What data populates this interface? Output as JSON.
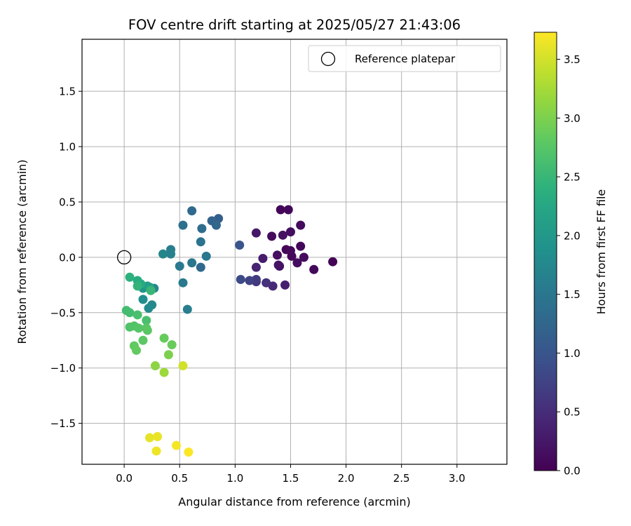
{
  "chart_data": {
    "type": "scatter",
    "title": "FOV centre drift starting at 2025/05/27 21:43:06",
    "xlabel": "Angular distance from reference (arcmin)",
    "ylabel": "Rotation from reference (arcmin)",
    "xlim": [
      -0.38,
      3.45
    ],
    "ylim": [
      -1.87,
      1.97
    ],
    "xticks": [
      0.0,
      0.5,
      1.0,
      1.5,
      2.0,
      2.5,
      3.0
    ],
    "xtick_labels": [
      "0.0",
      "0.5",
      "1.0",
      "1.5",
      "2.0",
      "2.5",
      "3.0"
    ],
    "yticks": [
      -1.5,
      -1.0,
      -0.5,
      0.0,
      0.5,
      1.0,
      1.5
    ],
    "ytick_labels": [
      "−1.5",
      "−1.0",
      "−0.5",
      "0.0",
      "0.5",
      "1.0",
      "1.5"
    ],
    "grid": true,
    "legend": {
      "position": "top-right",
      "entries": [
        "Reference platepar"
      ]
    },
    "reference_point": {
      "x": 0.0,
      "y": 0.0,
      "label": "Reference platepar"
    },
    "colorbar": {
      "label": "Hours from first FF file",
      "colormap": "viridis",
      "range": [
        0.0,
        3.73
      ],
      "ticks": [
        0.0,
        0.5,
        1.0,
        1.5,
        2.0,
        2.5,
        3.0,
        3.5
      ],
      "tick_labels": [
        "0.0",
        "0.5",
        "1.0",
        "1.5",
        "2.0",
        "2.5",
        "3.0",
        "3.5"
      ]
    },
    "series": [
      {
        "color_by": "hours",
        "points": [
          {
            "x": 1.41,
            "y": 0.43,
            "c": 0.05
          },
          {
            "x": 1.48,
            "y": 0.43,
            "c": 0.08
          },
          {
            "x": 1.59,
            "y": 0.29,
            "c": 0.12
          },
          {
            "x": 1.5,
            "y": 0.23,
            "c": 0.15
          },
          {
            "x": 1.43,
            "y": 0.2,
            "c": 0.18
          },
          {
            "x": 1.33,
            "y": 0.19,
            "c": 0.1
          },
          {
            "x": 1.59,
            "y": 0.1,
            "c": 0.06
          },
          {
            "x": 1.46,
            "y": 0.07,
            "c": 0.04
          },
          {
            "x": 1.5,
            "y": 0.06,
            "c": 0.09
          },
          {
            "x": 1.38,
            "y": 0.02,
            "c": 0.13
          },
          {
            "x": 1.51,
            "y": 0.01,
            "c": 0.07
          },
          {
            "x": 1.62,
            "y": 0.0,
            "c": 0.11
          },
          {
            "x": 1.56,
            "y": -0.05,
            "c": 0.14
          },
          {
            "x": 1.4,
            "y": -0.08,
            "c": 0.16
          },
          {
            "x": 1.39,
            "y": -0.07,
            "c": 0.2
          },
          {
            "x": 1.71,
            "y": -0.11,
            "c": 0.08
          },
          {
            "x": 1.88,
            "y": -0.04,
            "c": 0.03
          },
          {
            "x": 1.19,
            "y": 0.22,
            "c": 0.25
          },
          {
            "x": 1.25,
            "y": -0.01,
            "c": 0.3
          },
          {
            "x": 1.19,
            "y": -0.09,
            "c": 0.4
          },
          {
            "x": 1.45,
            "y": -0.25,
            "c": 0.35
          },
          {
            "x": 1.34,
            "y": -0.26,
            "c": 0.45
          },
          {
            "x": 1.28,
            "y": -0.23,
            "c": 0.55
          },
          {
            "x": 1.19,
            "y": -0.22,
            "c": 0.6
          },
          {
            "x": 1.19,
            "y": -0.2,
            "c": 0.65
          },
          {
            "x": 1.13,
            "y": -0.21,
            "c": 0.75
          },
          {
            "x": 1.05,
            "y": -0.2,
            "c": 0.85
          },
          {
            "x": 1.04,
            "y": 0.11,
            "c": 1.0
          },
          {
            "x": 0.85,
            "y": 0.35,
            "c": 1.15
          },
          {
            "x": 0.79,
            "y": 0.33,
            "c": 1.2
          },
          {
            "x": 0.83,
            "y": 0.29,
            "c": 1.25
          },
          {
            "x": 0.61,
            "y": 0.42,
            "c": 1.3
          },
          {
            "x": 0.7,
            "y": 0.26,
            "c": 1.35
          },
          {
            "x": 0.53,
            "y": 0.29,
            "c": 1.4
          },
          {
            "x": 0.69,
            "y": 0.14,
            "c": 1.45
          },
          {
            "x": 0.74,
            "y": 0.01,
            "c": 1.5
          },
          {
            "x": 0.69,
            "y": -0.09,
            "c": 1.3
          },
          {
            "x": 0.61,
            "y": -0.05,
            "c": 1.5
          },
          {
            "x": 0.5,
            "y": -0.08,
            "c": 1.55
          },
          {
            "x": 0.53,
            "y": -0.23,
            "c": 1.55
          },
          {
            "x": 0.42,
            "y": 0.07,
            "c": 1.6
          },
          {
            "x": 0.42,
            "y": 0.03,
            "c": 1.65
          },
          {
            "x": 0.35,
            "y": 0.03,
            "c": 1.7
          },
          {
            "x": 0.57,
            "y": -0.47,
            "c": 1.6
          },
          {
            "x": 0.27,
            "y": -0.28,
            "c": 1.75
          },
          {
            "x": 0.25,
            "y": -0.43,
            "c": 1.75
          },
          {
            "x": 0.22,
            "y": -0.46,
            "c": 1.8
          },
          {
            "x": 0.17,
            "y": -0.38,
            "c": 1.85
          },
          {
            "x": 0.17,
            "y": -0.28,
            "c": 1.95
          },
          {
            "x": 0.21,
            "y": -0.26,
            "c": 2.05
          },
          {
            "x": 0.23,
            "y": -0.27,
            "c": 2.15
          },
          {
            "x": 0.13,
            "y": -0.23,
            "c": 2.25
          },
          {
            "x": 0.15,
            "y": -0.24,
            "c": 2.3
          },
          {
            "x": 0.12,
            "y": -0.21,
            "c": 2.35
          },
          {
            "x": 0.05,
            "y": -0.18,
            "c": 2.4
          },
          {
            "x": 0.12,
            "y": -0.26,
            "c": 2.45
          },
          {
            "x": 0.24,
            "y": -0.3,
            "c": 2.5
          },
          {
            "x": 0.02,
            "y": -0.48,
            "c": 2.6
          },
          {
            "x": 0.05,
            "y": -0.5,
            "c": 2.6
          },
          {
            "x": 0.12,
            "y": -0.52,
            "c": 2.65
          },
          {
            "x": 0.2,
            "y": -0.57,
            "c": 2.65
          },
          {
            "x": 0.05,
            "y": -0.63,
            "c": 2.7
          },
          {
            "x": 0.09,
            "y": -0.62,
            "c": 2.72
          },
          {
            "x": 0.13,
            "y": -0.64,
            "c": 2.74
          },
          {
            "x": 0.2,
            "y": -0.64,
            "c": 2.76
          },
          {
            "x": 0.21,
            "y": -0.66,
            "c": 2.78
          },
          {
            "x": 0.17,
            "y": -0.75,
            "c": 2.8
          },
          {
            "x": 0.09,
            "y": -0.8,
            "c": 2.82
          },
          {
            "x": 0.11,
            "y": -0.84,
            "c": 2.84
          },
          {
            "x": 0.36,
            "y": -0.73,
            "c": 2.86
          },
          {
            "x": 0.43,
            "y": -0.79,
            "c": 2.88
          },
          {
            "x": 0.4,
            "y": -0.88,
            "c": 3.0
          },
          {
            "x": 0.28,
            "y": -0.98,
            "c": 3.1
          },
          {
            "x": 0.36,
            "y": -1.04,
            "c": 3.2
          },
          {
            "x": 0.53,
            "y": -0.98,
            "c": 3.5
          },
          {
            "x": 0.23,
            "y": -1.63,
            "c": 3.6
          },
          {
            "x": 0.3,
            "y": -1.62,
            "c": 3.62
          },
          {
            "x": 0.29,
            "y": -1.75,
            "c": 3.65
          },
          {
            "x": 0.47,
            "y": -1.7,
            "c": 3.68
          },
          {
            "x": 0.58,
            "y": -1.76,
            "c": 3.72
          }
        ]
      }
    ]
  }
}
